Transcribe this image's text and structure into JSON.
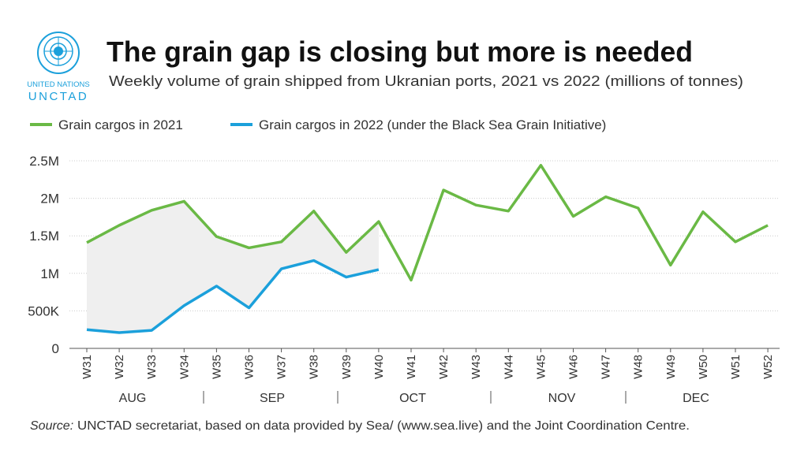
{
  "org": {
    "line1": "UNITED NATIONS",
    "line2": "UNCTAD"
  },
  "chart_data": {
    "type": "line",
    "title": "The grain gap is closing but more is needed",
    "subtitle": "Weekly volume of grain shipped from Ukranian ports, 2021 vs 2022 (millions of tonnes)",
    "categories": [
      "W31",
      "W32",
      "W33",
      "W34",
      "W35",
      "W36",
      "W37",
      "W38",
      "W39",
      "W40",
      "W41",
      "W42",
      "W43",
      "W44",
      "W45",
      "W46",
      "W47",
      "W48",
      "W49",
      "W50",
      "W51",
      "W52"
    ],
    "months": [
      "AUG",
      "SEP",
      "OCT",
      "NOV",
      "DEC"
    ],
    "series": [
      {
        "name": "Grain cargos in 2021",
        "color": "#6ab945",
        "values": [
          1.41,
          1.64,
          1.84,
          1.96,
          1.49,
          1.34,
          1.42,
          1.83,
          1.28,
          1.69,
          0.91,
          2.11,
          1.91,
          1.83,
          2.44,
          1.76,
          2.02,
          1.87,
          1.11,
          1.82,
          1.42,
          1.64
        ]
      },
      {
        "name": "Grain cargos in 2022 (under the Black Sea Grain Initiative)",
        "color": "#1ba0db",
        "values": [
          0.25,
          0.21,
          0.24,
          0.57,
          0.83,
          0.54,
          1.06,
          1.17,
          0.95,
          1.05,
          null,
          null,
          null,
          null,
          null,
          null,
          null,
          null,
          null,
          null,
          null,
          null
        ]
      }
    ],
    "ylim": [
      0,
      2.5
    ],
    "yticks": [
      0,
      {
        "value": 0.5,
        "label": "500K"
      },
      {
        "value": 1,
        "label": "1M"
      },
      {
        "value": 1.5,
        "label": "1.5M"
      },
      {
        "value": 2,
        "label": "2M"
      },
      {
        "value": 2.5,
        "label": "2.5M"
      }
    ],
    "grid": true,
    "gap_fill": "#efefef",
    "source_label": "Source:",
    "source": "UNCTAD secretariat, based on data provided by Sea/ (www.sea.live) and the Joint Coordination Centre."
  }
}
